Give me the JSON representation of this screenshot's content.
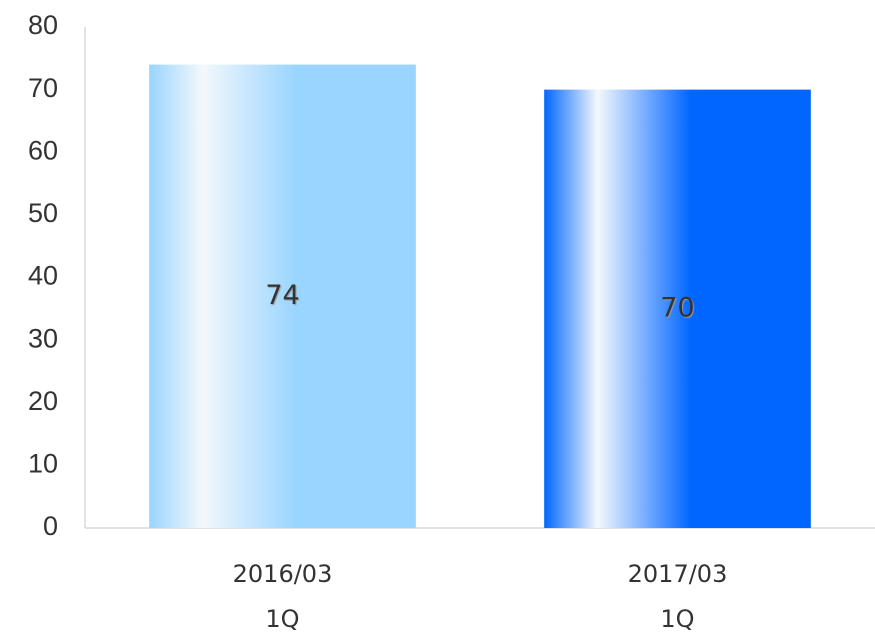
{
  "chart_data": {
    "type": "bar",
    "categories": [
      [
        "2016/03",
        "1Q"
      ],
      [
        "2017/03",
        "1Q"
      ]
    ],
    "values": [
      74,
      70
    ],
    "colors": [
      "#99d5ff",
      "#0066ff"
    ],
    "ylim": [
      0,
      80
    ],
    "yticks": [
      0,
      10,
      20,
      30,
      40,
      50,
      60,
      70,
      80
    ],
    "grid": false
  }
}
